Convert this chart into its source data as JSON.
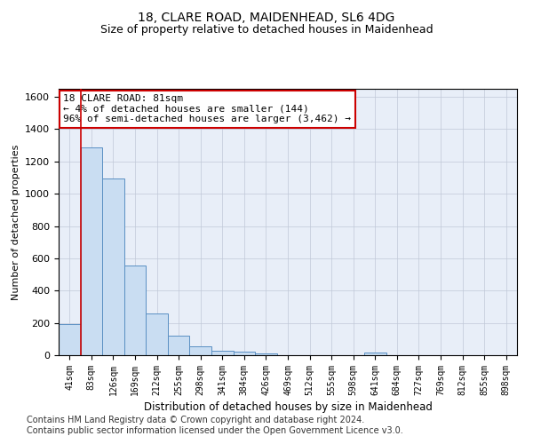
{
  "title1": "18, CLARE ROAD, MAIDENHEAD, SL6 4DG",
  "title2": "Size of property relative to detached houses in Maidenhead",
  "xlabel": "Distribution of detached houses by size in Maidenhead",
  "ylabel": "Number of detached properties",
  "annotation_line1": "18 CLARE ROAD: 81sqm",
  "annotation_line2": "← 4% of detached houses are smaller (144)",
  "annotation_line3": "96% of semi-detached houses are larger (3,462) →",
  "bar_color": "#c9ddf2",
  "bar_edge_color": "#5a8fc3",
  "vline_color": "#cc0000",
  "annotation_box_edge": "#cc0000",
  "categories": [
    "41sqm",
    "83sqm",
    "126sqm",
    "169sqm",
    "212sqm",
    "255sqm",
    "298sqm",
    "341sqm",
    "384sqm",
    "426sqm",
    "469sqm",
    "512sqm",
    "555sqm",
    "598sqm",
    "641sqm",
    "684sqm",
    "727sqm",
    "769sqm",
    "812sqm",
    "855sqm",
    "898sqm"
  ],
  "values": [
    195,
    1285,
    1095,
    555,
    260,
    120,
    55,
    30,
    20,
    10,
    0,
    0,
    0,
    0,
    15,
    0,
    0,
    0,
    0,
    0,
    0
  ],
  "ylim": [
    0,
    1650
  ],
  "yticks": [
    0,
    200,
    400,
    600,
    800,
    1000,
    1200,
    1400,
    1600
  ],
  "grid_color": "#c0c8d8",
  "background_color": "#e8eef8",
  "footer1": "Contains HM Land Registry data © Crown copyright and database right 2024.",
  "footer2": "Contains public sector information licensed under the Open Government Licence v3.0.",
  "title1_fontsize": 10,
  "title2_fontsize": 9,
  "annotation_fontsize": 8,
  "footer_fontsize": 7
}
